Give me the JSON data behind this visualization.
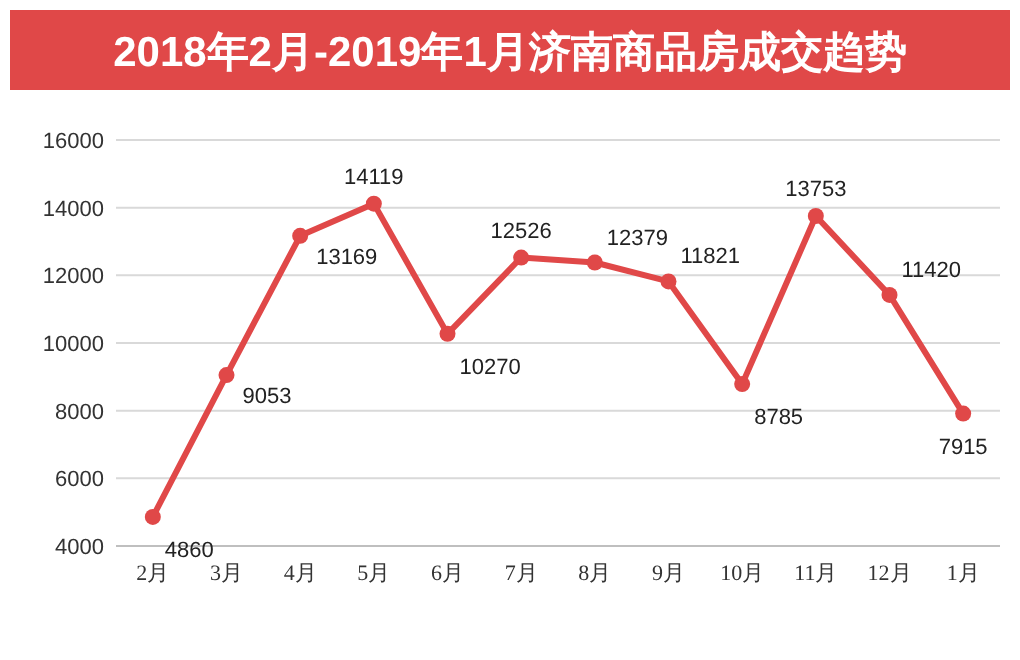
{
  "chart_data": {
    "type": "line",
    "title": "2018年2月-2019年1月济南商品房成交趋势",
    "categories": [
      "2月",
      "3月",
      "4月",
      "5月",
      "6月",
      "7月",
      "8月",
      "9月",
      "10月",
      "11月",
      "12月",
      "1月"
    ],
    "series": [
      {
        "color": "#e04848",
        "values": [
          4860,
          9053,
          13169,
          14119,
          10270,
          12526,
          12379,
          11821,
          8785,
          13753,
          11420,
          7915
        ]
      }
    ],
    "ylim": [
      4000,
      16000
    ],
    "yticks": [
      4000,
      6000,
      8000,
      10000,
      12000,
      14000,
      16000
    ],
    "grid": "y",
    "marker": "circle",
    "line_style": "solid",
    "data_labels": true
  }
}
